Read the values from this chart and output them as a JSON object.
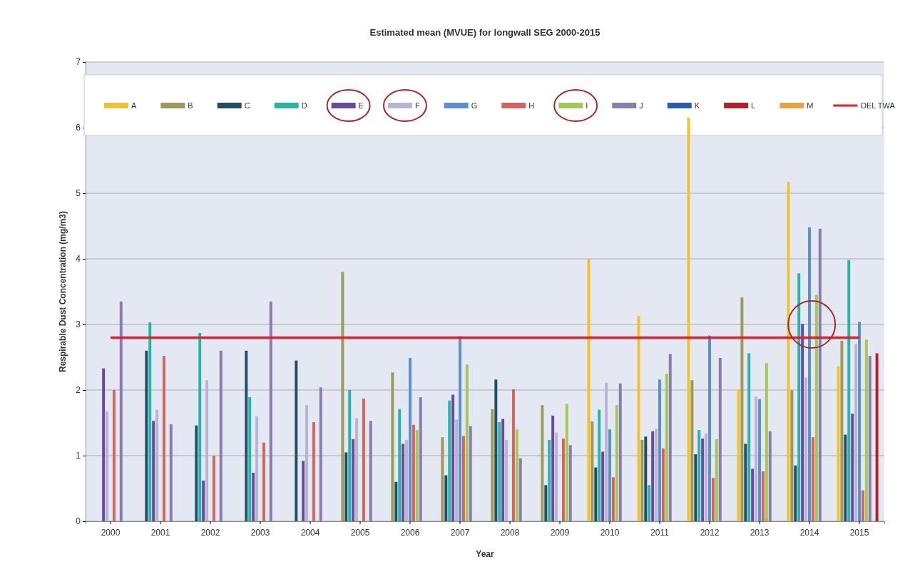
{
  "chart_data": {
    "type": "bar",
    "title": "Estimated mean (MVUE) for longwall SEG 2000-2015",
    "xlabel": "Year",
    "ylabel": "Respirable Dust Concentration (mg/m3)",
    "categories": [
      "2000",
      "2001",
      "2002",
      "2003",
      "2004",
      "2005",
      "2006",
      "2007",
      "2008",
      "2009",
      "2010",
      "2011",
      "2012",
      "2013",
      "2014",
      "2015"
    ],
    "ylim": [
      0,
      7
    ],
    "yticks": [
      0,
      1,
      2,
      3,
      4,
      5,
      6,
      7
    ],
    "grid": "y",
    "legend": "top",
    "series": [
      {
        "name": "A",
        "color": "#f2c12e",
        "values": [
          null,
          null,
          null,
          null,
          null,
          null,
          null,
          null,
          null,
          null,
          4.0,
          3.13,
          6.15,
          2.01,
          5.17,
          2.36
        ]
      },
      {
        "name": "B",
        "color": "#9e9a5a",
        "values": [
          null,
          null,
          null,
          null,
          null,
          3.8,
          2.27,
          1.28,
          1.71,
          1.77,
          1.52,
          1.24,
          2.15,
          3.41,
          2.0,
          2.75
        ]
      },
      {
        "name": "C",
        "color": "#1f4e66",
        "values": [
          null,
          2.6,
          1.46,
          2.6,
          2.45,
          1.05,
          0.6,
          0.7,
          2.16,
          0.55,
          0.82,
          1.29,
          1.02,
          1.18,
          0.85,
          1.32
        ]
      },
      {
        "name": "D",
        "color": "#2bb3a8",
        "values": [
          null,
          3.03,
          2.87,
          1.89,
          null,
          2.0,
          1.71,
          1.84,
          1.51,
          1.24,
          1.7,
          0.55,
          1.39,
          2.56,
          3.78,
          3.98
        ]
      },
      {
        "name": "E",
        "color": "#6a4a9c",
        "values": [
          2.33,
          1.53,
          0.62,
          0.74,
          0.92,
          1.25,
          1.18,
          1.93,
          1.56,
          1.61,
          1.06,
          1.37,
          1.26,
          0.8,
          3.01,
          1.64
        ]
      },
      {
        "name": "F",
        "color": "#b9b3d6",
        "values": [
          1.67,
          1.7,
          2.15,
          1.6,
          1.77,
          1.57,
          1.24,
          1.55,
          1.24,
          1.35,
          2.11,
          1.41,
          1.34,
          1.9,
          2.19,
          2.7
        ]
      },
      {
        "name": "G",
        "color": "#5b8fd1",
        "values": [
          null,
          null,
          null,
          null,
          null,
          null,
          2.49,
          2.82,
          null,
          null,
          1.4,
          2.16,
          2.83,
          1.86,
          4.48,
          3.04
        ]
      },
      {
        "name": "H",
        "color": "#d0665e",
        "values": [
          2.0,
          2.52,
          1.0,
          1.2,
          1.51,
          1.87,
          1.47,
          1.3,
          2.01,
          1.26,
          0.67,
          1.11,
          0.66,
          0.76,
          1.28,
          0.47
        ]
      },
      {
        "name": "I",
        "color": "#a6c65a",
        "values": [
          null,
          null,
          null,
          null,
          null,
          null,
          1.39,
          2.39,
          1.4,
          1.79,
          1.77,
          2.25,
          1.25,
          2.41,
          3.45,
          2.77
        ]
      },
      {
        "name": "J",
        "color": "#8a7bb0",
        "values": [
          3.35,
          1.48,
          2.6,
          3.35,
          2.04,
          1.53,
          1.89,
          1.45,
          0.96,
          1.16,
          2.1,
          2.55,
          2.49,
          1.37,
          4.46,
          2.52
        ]
      },
      {
        "name": "K",
        "color": "#2a5db0",
        "values": [
          null,
          null,
          null,
          null,
          null,
          null,
          null,
          null,
          null,
          null,
          null,
          null,
          null,
          null,
          null,
          null
        ]
      },
      {
        "name": "L",
        "color": "#b4202a",
        "values": [
          null,
          null,
          null,
          null,
          null,
          null,
          null,
          null,
          null,
          null,
          null,
          null,
          null,
          null,
          null,
          2.56
        ]
      },
      {
        "name": "M",
        "color": "#e8a33a",
        "values": [
          null,
          null,
          null,
          null,
          null,
          null,
          null,
          null,
          null,
          null,
          null,
          null,
          null,
          null,
          null,
          null
        ]
      },
      {
        "name": "OEL TWA",
        "type": "line",
        "color": "#e0202a",
        "values": [
          2.8,
          2.8,
          2.8,
          2.8,
          2.8,
          2.8,
          2.8,
          2.8,
          2.8,
          2.8,
          2.8,
          2.8,
          2.8,
          2.8,
          2.8,
          2.8
        ]
      }
    ]
  }
}
